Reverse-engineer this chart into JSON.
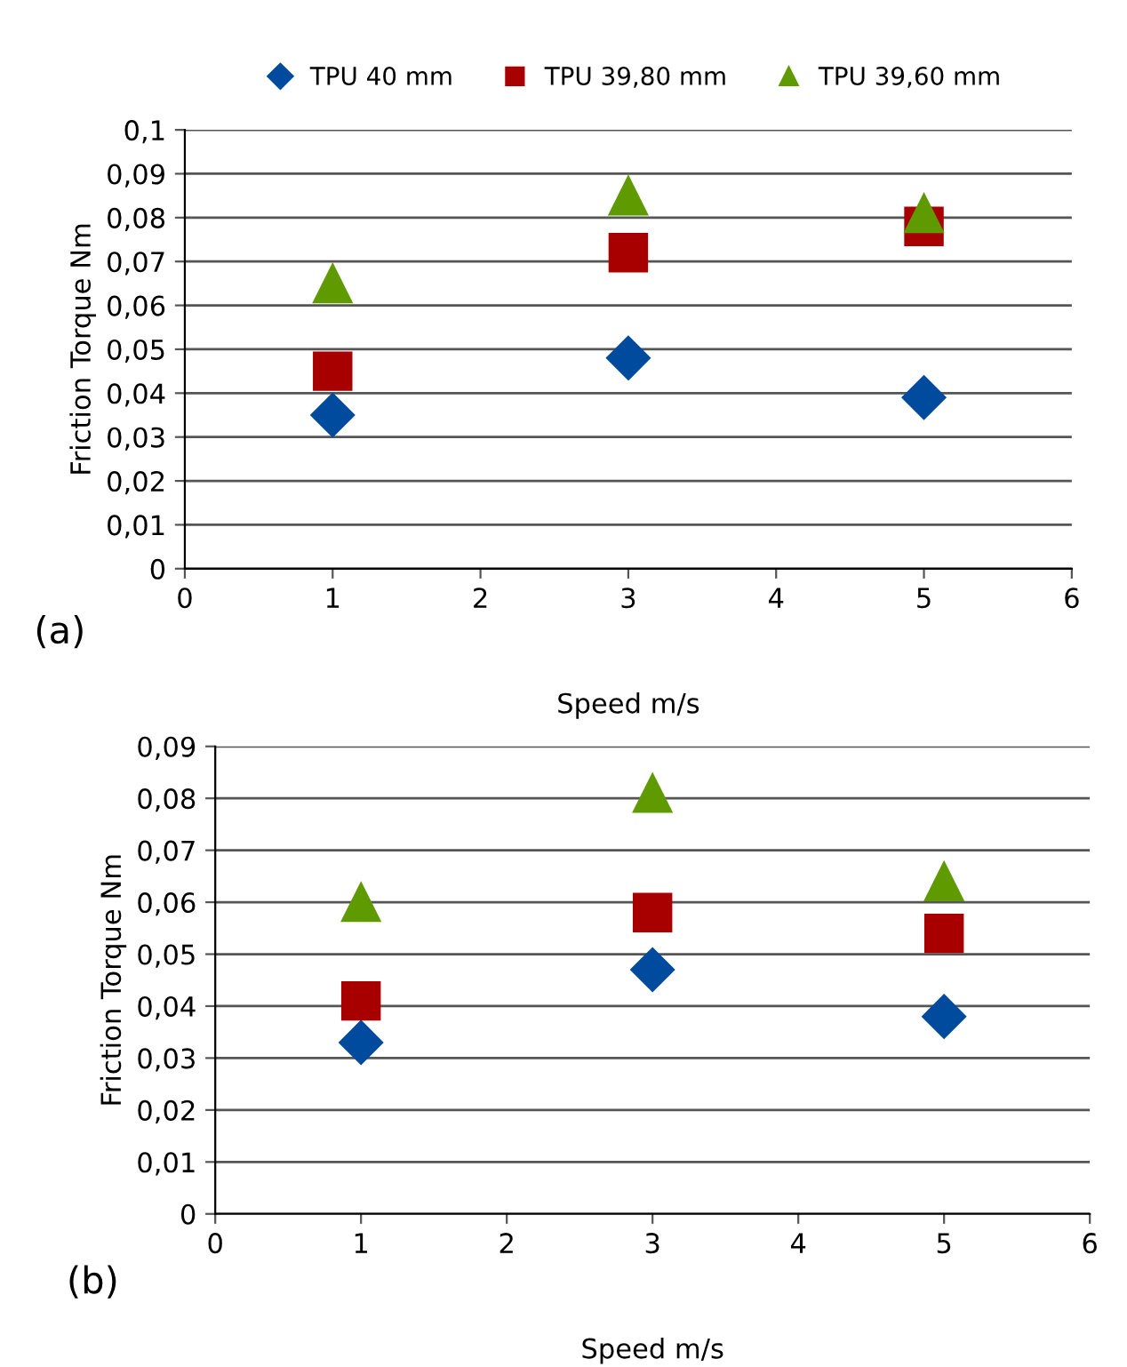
{
  "chart_data": [
    {
      "type": "scatter",
      "xlabel": "Speed m/s",
      "ylabel": "Friction Torque Nm",
      "annotations": [
        "(a)"
      ],
      "legend": "top",
      "grid": "y",
      "x": [
        1,
        3,
        5
      ],
      "xlim": [
        0,
        6
      ],
      "xticks": [
        0,
        1,
        2,
        3,
        4,
        5,
        6
      ],
      "ylim": [
        0,
        0.1
      ],
      "yticks": [
        {
          "value": 0,
          "label": "0"
        },
        {
          "value": 0.01,
          "label": "0,01"
        },
        {
          "value": 0.02,
          "label": "0,02"
        },
        {
          "value": 0.03,
          "label": "0,03"
        },
        {
          "value": 0.04,
          "label": "0,04"
        },
        {
          "value": 0.05,
          "label": "0,05"
        },
        {
          "value": 0.06,
          "label": "0,06"
        },
        {
          "value": 0.07,
          "label": "0,07"
        },
        {
          "value": 0.08,
          "label": "0,08"
        },
        {
          "value": 0.09,
          "label": "0,09"
        },
        {
          "value": 0.1,
          "label": "0,1"
        }
      ],
      "series": [
        {
          "name": "TPU 40 mm",
          "color": "#004b9e",
          "marker": "diamond",
          "values": [
            0.035,
            0.048,
            0.039
          ]
        },
        {
          "name": "TPU 39,80 mm",
          "color": "#a80000",
          "marker": "square",
          "values": [
            0.045,
            0.072,
            0.078
          ]
        },
        {
          "name": "TPU 39,60 mm",
          "color": "#5f9a00",
          "marker": "triangle",
          "values": [
            0.065,
            0.085,
            0.081
          ]
        }
      ]
    },
    {
      "type": "scatter",
      "xlabel": "Speed m/s",
      "ylabel": "Friction Torque Nm",
      "annotations": [
        "(b)"
      ],
      "grid": "y",
      "x": [
        1,
        3,
        5
      ],
      "xlim": [
        0,
        6
      ],
      "xticks": [
        0,
        1,
        2,
        3,
        4,
        5,
        6
      ],
      "ylim": [
        0,
        0.09
      ],
      "yticks": [
        {
          "value": 0,
          "label": "0"
        },
        {
          "value": 0.01,
          "label": "0,01"
        },
        {
          "value": 0.02,
          "label": "0,02"
        },
        {
          "value": 0.03,
          "label": "0,03"
        },
        {
          "value": 0.04,
          "label": "0,04"
        },
        {
          "value": 0.05,
          "label": "0,05"
        },
        {
          "value": 0.06,
          "label": "0,06"
        },
        {
          "value": 0.07,
          "label": "0,07"
        },
        {
          "value": 0.08,
          "label": "0,08"
        },
        {
          "value": 0.09,
          "label": "0,09"
        }
      ],
      "series": [
        {
          "color": "#004b9e",
          "marker": "diamond",
          "values": [
            0.033,
            0.047,
            0.038
          ]
        },
        {
          "color": "#a80000",
          "marker": "square",
          "values": [
            0.041,
            0.058,
            0.054
          ]
        },
        {
          "color": "#5f9a00",
          "marker": "triangle",
          "values": [
            0.06,
            0.081,
            0.064
          ]
        }
      ]
    }
  ]
}
